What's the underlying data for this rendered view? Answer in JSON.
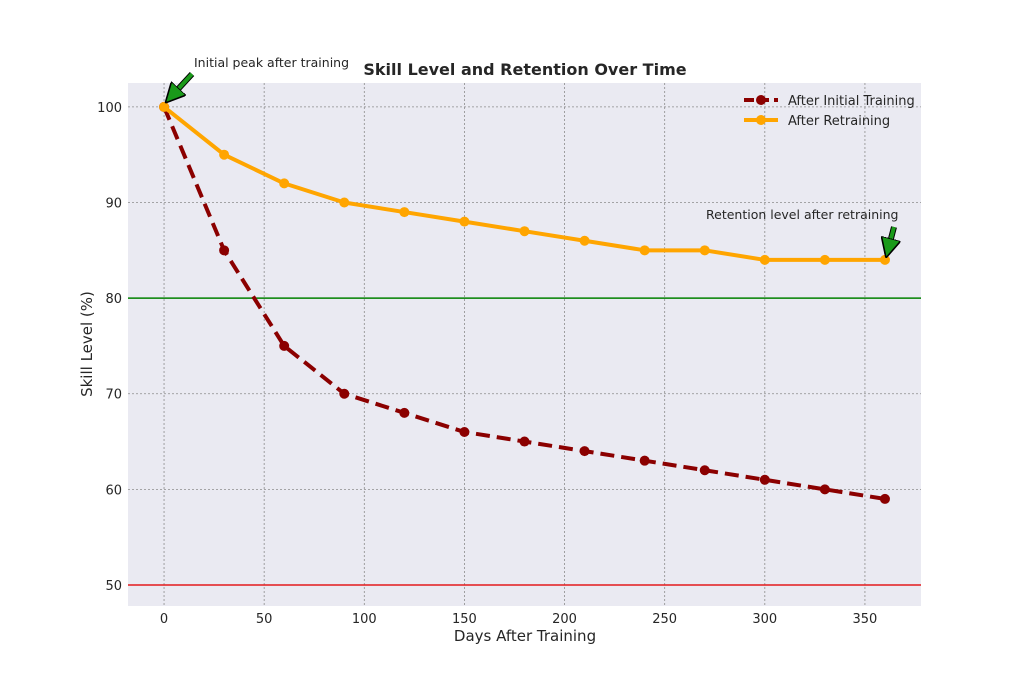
{
  "chart_data": {
    "type": "line",
    "title": "Skill Level and Retention Over Time",
    "xlabel": "Days After Training",
    "ylabel": "Skill Level (%)",
    "xlim": [
      -18,
      378
    ],
    "ylim": [
      47.8,
      102.5
    ],
    "xticks": [
      0,
      50,
      100,
      150,
      200,
      250,
      300,
      350
    ],
    "yticks": [
      50,
      60,
      70,
      80,
      90,
      100
    ],
    "grid": true,
    "legend_position": "top-right",
    "x": [
      0,
      30,
      60,
      90,
      120,
      150,
      180,
      210,
      240,
      270,
      300,
      330,
      360
    ],
    "series": [
      {
        "name": "After Initial Training",
        "values": [
          100,
          85,
          75,
          70,
          68,
          66,
          65,
          64,
          63,
          62,
          61,
          60,
          59
        ],
        "color": "#8b0000",
        "style": "dashed"
      },
      {
        "name": "After Retraining",
        "values": [
          100,
          95,
          92,
          90,
          89,
          88,
          87,
          86,
          85,
          85,
          84,
          84,
          84
        ],
        "color": "#ffa500",
        "style": "solid"
      }
    ],
    "reference_lines": [
      {
        "y": 80,
        "color": "#008000"
      },
      {
        "y": 50,
        "color": "#e31a1c"
      }
    ],
    "annotations": [
      {
        "text": "Initial peak after training",
        "x": 0,
        "y": 100,
        "arrow_color": "#1a9a1a"
      },
      {
        "text": "Retention level after retraining",
        "x": 360,
        "y": 84,
        "arrow_color": "#1a9a1a"
      }
    ],
    "plot_background": "#eaeaf2"
  }
}
